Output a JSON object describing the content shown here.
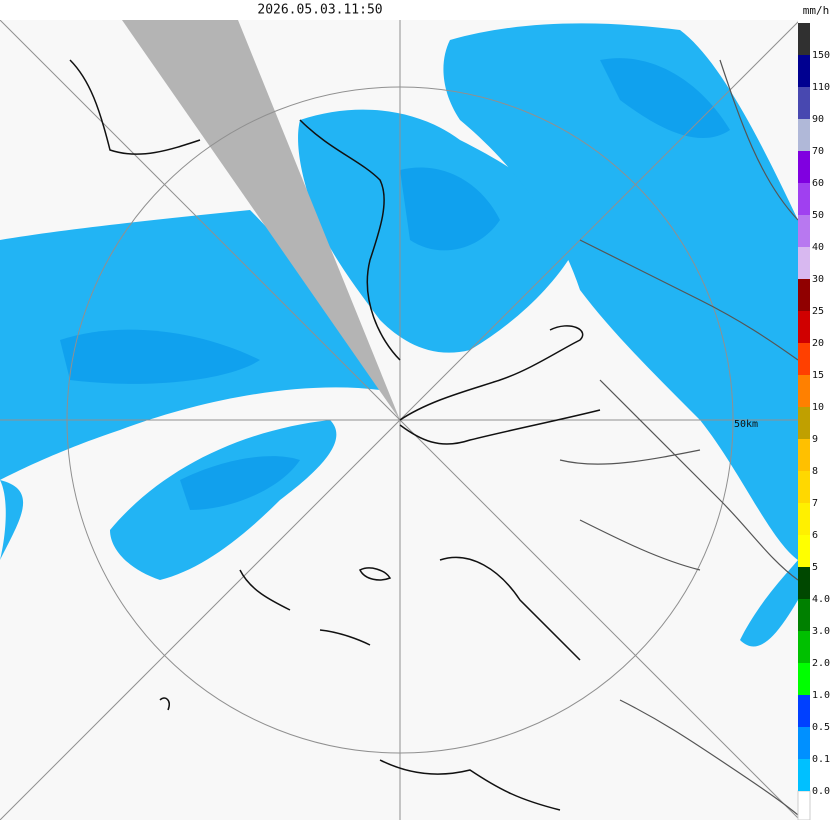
{
  "header": {
    "timestamp": "2026.05.03.11:50"
  },
  "map": {
    "range_label": "50km"
  },
  "legend": {
    "unit": "mm/h",
    "items": [
      {
        "label": "150",
        "color": "#303030"
      },
      {
        "label": "110",
        "color": "#000090"
      },
      {
        "label": "90",
        "color": "#4848b0"
      },
      {
        "label": "70",
        "color": "#b0b8d8"
      },
      {
        "label": "60",
        "color": "#8000e0"
      },
      {
        "label": "50",
        "color": "#a040f0"
      },
      {
        "label": "40",
        "color": "#b878f0"
      },
      {
        "label": "30",
        "color": "#d8b8f0"
      },
      {
        "label": "25",
        "color": "#900000"
      },
      {
        "label": "20",
        "color": "#d00000"
      },
      {
        "label": "15",
        "color": "#ff4000"
      },
      {
        "label": "10",
        "color": "#ff8000"
      },
      {
        "label": "9",
        "color": "#c0a000"
      },
      {
        "label": "8",
        "color": "#ffc000"
      },
      {
        "label": "7",
        "color": "#ffd800"
      },
      {
        "label": "6",
        "color": "#fff000"
      },
      {
        "label": "5",
        "color": "#ffff00"
      },
      {
        "label": "4.0",
        "color": "#004800"
      },
      {
        "label": "3.0",
        "color": "#008000"
      },
      {
        "label": "2.0",
        "color": "#00c000"
      },
      {
        "label": "1.0",
        "color": "#00ff00"
      },
      {
        "label": "0.5",
        "color": "#0040ff"
      },
      {
        "label": "0.1",
        "color": "#0090ff"
      },
      {
        "label": "0.0",
        "color": "#00c0ff"
      }
    ]
  }
}
